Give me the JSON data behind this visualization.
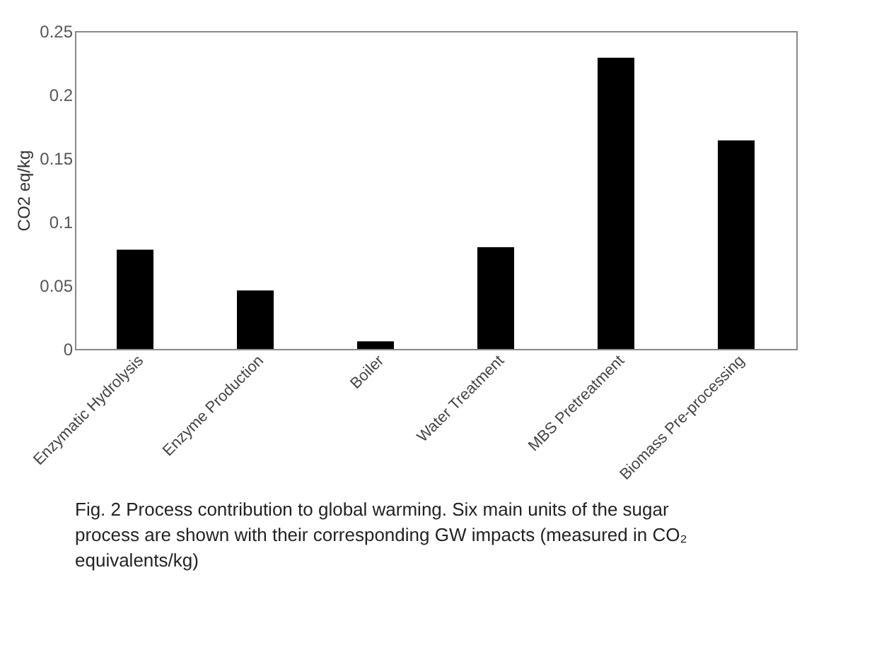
{
  "chart_data": {
    "type": "bar",
    "ylabel": "CO2 eq/kg",
    "categories": [
      "Enzymatic Hydrolysis",
      "Enzyme Production",
      "Boiler",
      "Water Treatment",
      "MBS Pretreatment",
      "Biomass Pre-processing"
    ],
    "values": [
      0.078,
      0.046,
      0.006,
      0.08,
      0.229,
      0.164
    ],
    "color": "#000000",
    "ylim": [
      0,
      0.25
    ],
    "yticks": [
      0,
      0.05,
      0.1,
      0.15,
      0.2,
      0.25
    ],
    "grid": false,
    "annotations": [
      "Fig. 2  Process contribution to global warming. Six main units of the sugar process are shown with their corresponding GW impacts (measured in CO₂ equivalents/kg)"
    ]
  }
}
